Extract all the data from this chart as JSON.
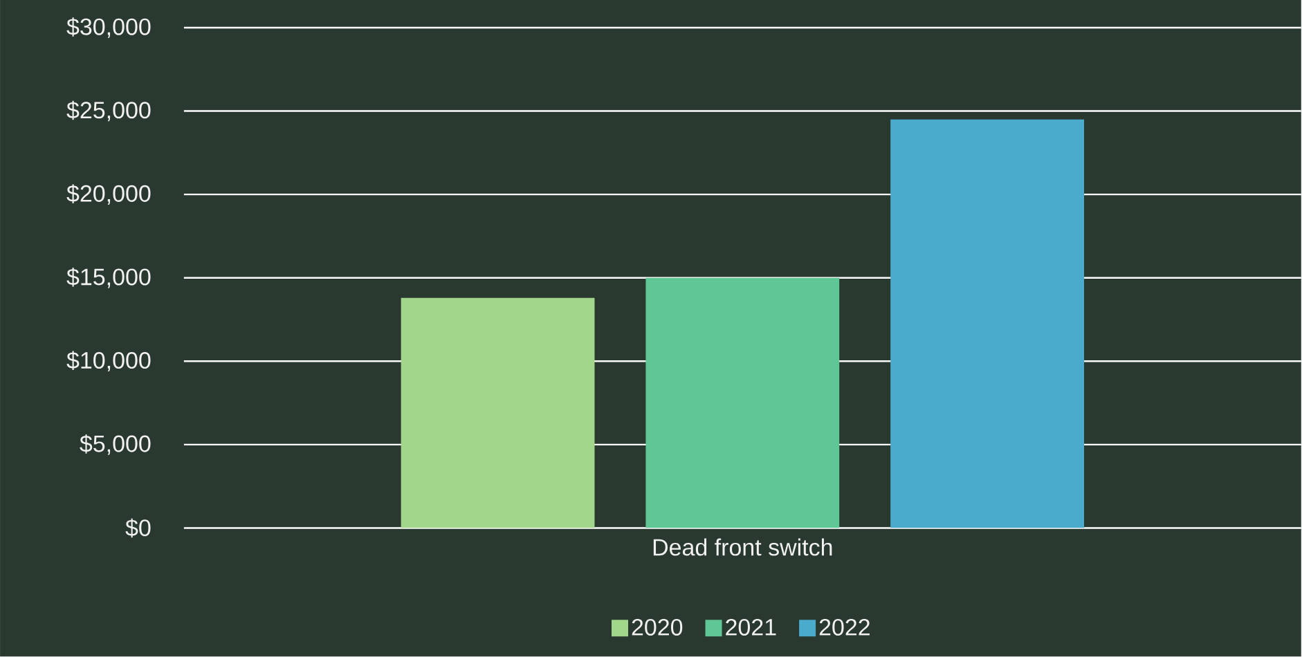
{
  "chart_data": {
    "type": "bar",
    "categories": [
      "Dead front switch"
    ],
    "series": [
      {
        "name": "2020",
        "color": "#a2d68b",
        "values": [
          13800
        ]
      },
      {
        "name": "2021",
        "color": "#5fc796",
        "values": [
          15000
        ]
      },
      {
        "name": "2022",
        "color": "#4aabcd",
        "values": [
          24500
        ]
      }
    ],
    "ylim": [
      0,
      30000
    ],
    "yticks": [
      {
        "value": 0,
        "label": "$0"
      },
      {
        "value": 5000,
        "label": "$5,000"
      },
      {
        "value": 10000,
        "label": "$10,000"
      },
      {
        "value": 15000,
        "label": "$15,000"
      },
      {
        "value": 20000,
        "label": "$20,000"
      },
      {
        "value": 25000,
        "label": "$25,000"
      },
      {
        "value": 30000,
        "label": "$30,000"
      }
    ],
    "grid": "y",
    "legend": "bottom"
  }
}
